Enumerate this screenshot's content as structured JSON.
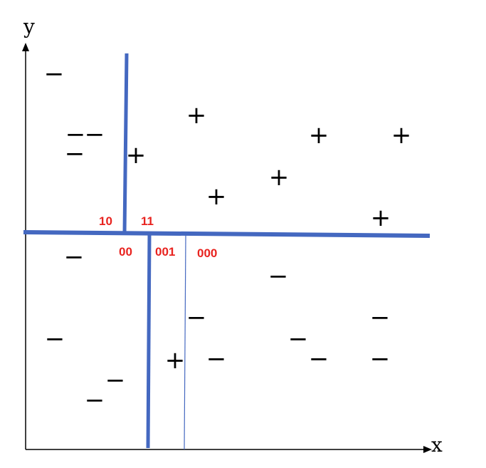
{
  "axes": {
    "x_label": "x",
    "y_label": "y"
  },
  "region_labels": {
    "r10": "10",
    "r11": "11",
    "r00": "00",
    "r001": "001",
    "r000": "000"
  },
  "symbols": {
    "plus": "+",
    "minus": "−"
  },
  "colors": {
    "split_line": "#4468c0",
    "region_label": "#e8231f",
    "axis": "#000000"
  }
}
